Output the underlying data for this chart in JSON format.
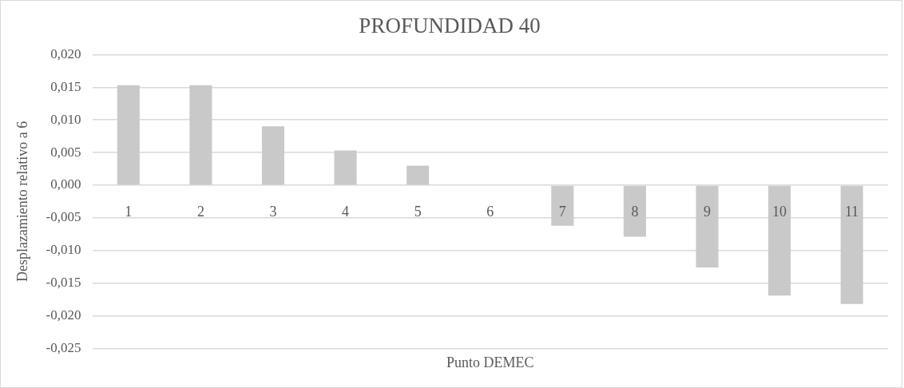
{
  "chart_data": {
    "type": "bar",
    "title": "PROFUNDIDAD 40",
    "xlabel": "Punto DEMEC",
    "ylabel": "Desplazamiento relativo a 6",
    "categories": [
      "1",
      "2",
      "3",
      "4",
      "5",
      "6",
      "7",
      "8",
      "9",
      "10",
      "11"
    ],
    "values": [
      0.0153,
      0.0153,
      0.009,
      0.0053,
      0.003,
      0,
      -0.0062,
      -0.0079,
      -0.0126,
      -0.0169,
      -0.0182
    ],
    "color": "#c9c9c9",
    "ylim": [
      -0.025,
      0.02
    ],
    "yticks": [
      {
        "value": -0.025,
        "label": "-0,025"
      },
      {
        "value": -0.02,
        "label": "-0,020"
      },
      {
        "value": -0.015,
        "label": "-0,015"
      },
      {
        "value": -0.01,
        "label": "-0,010"
      },
      {
        "value": -0.005,
        "label": "-0,005"
      },
      {
        "value": 0,
        "label": "0,000"
      },
      {
        "value": 0.005,
        "label": "0,005"
      },
      {
        "value": 0.01,
        "label": "0,010"
      },
      {
        "value": 0.015,
        "label": "0,015"
      },
      {
        "value": 0.02,
        "label": "0,020"
      }
    ],
    "grid": "y",
    "legend": false
  }
}
